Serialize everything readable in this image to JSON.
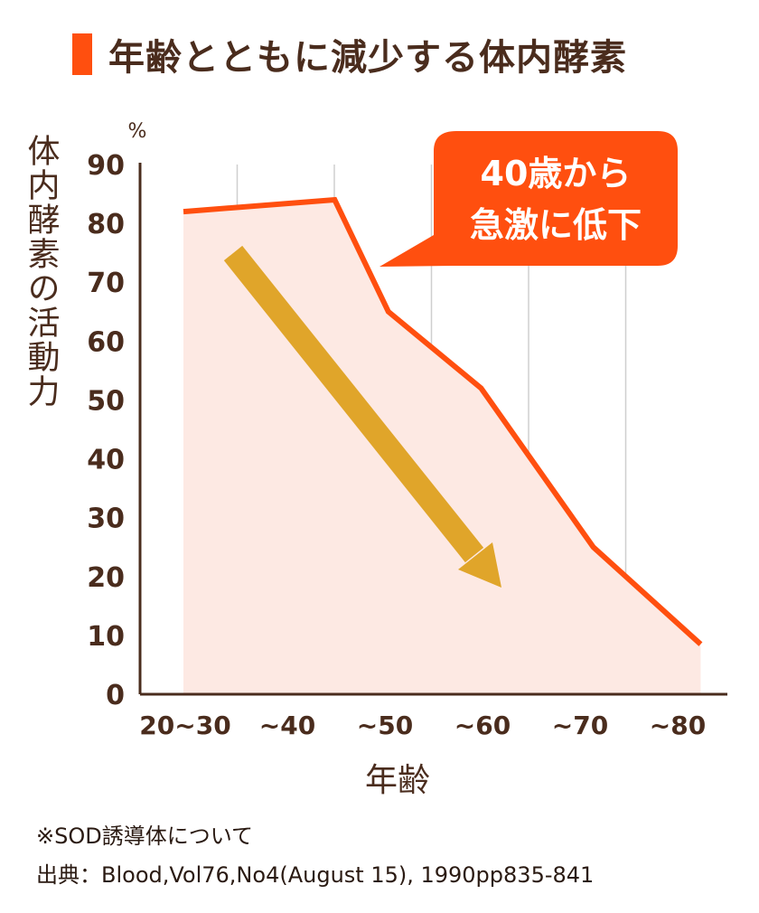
{
  "title": "年齢とともに減少する体内酵素",
  "colors": {
    "line": "#ff4f0f",
    "fill": "#fde9e3",
    "arrow": "#e0a52a",
    "callout": "#ff4f0f",
    "text": "#4a2c1d",
    "grid": "#cfcfcf"
  },
  "chart_data": {
    "type": "area",
    "title": "年齢とともに減少する体内酵素",
    "xlabel": "年齢",
    "ylabel": "体内酵素の活動力",
    "yunit": "%",
    "ylim": [
      0,
      90
    ],
    "yticks": [
      0,
      10,
      20,
      30,
      40,
      50,
      60,
      70,
      80,
      90
    ],
    "categories": [
      "20~30",
      "~40",
      "~50",
      "~60",
      "~70",
      "~80"
    ],
    "series": [
      {
        "name": "体内酵素の活動力",
        "x": [
          0,
          1.55,
          2.1,
          3.05,
          4.2,
          5.3
        ],
        "values": [
          82,
          84,
          65,
          52,
          25,
          8.5
        ]
      }
    ],
    "grid": "vertical",
    "annotation": {
      "lines": [
        "40歳から",
        "急激に低下"
      ]
    },
    "trend_arrow": "decreasing"
  },
  "footnotes": [
    "※SOD誘導体について",
    "出典：Blood,Vol76,No4(August 15), 1990pp835-841"
  ]
}
